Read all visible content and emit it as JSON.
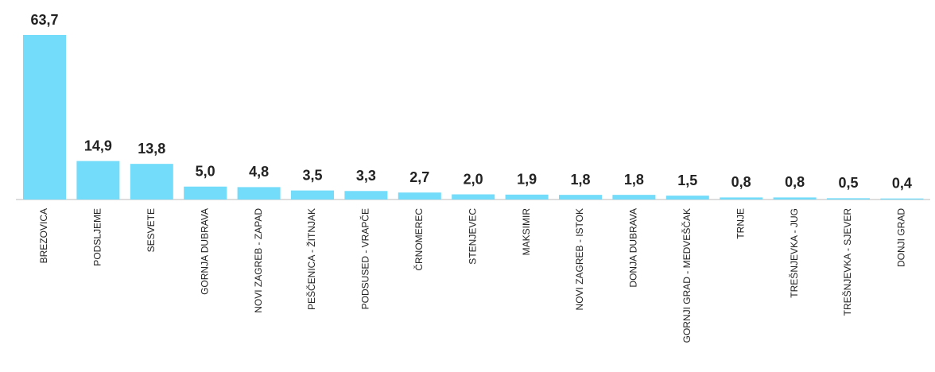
{
  "chart_data": {
    "type": "bar",
    "categories": [
      "BREZOVICA",
      "PODSLJEME",
      "SESVETE",
      "GORNJA DUBRAVA",
      "NOVI ZAGREB - ZAPAD",
      "PEŠČENICA - ŽITNJAK",
      "PODSUSED - VRAPČE",
      "ČRNOMEREC",
      "STENJEVEC",
      "MAKSIMIR",
      "NOVI ZAGREB - ISTOK",
      "DONJA DUBRAVA",
      "GORNJI GRAD - MEDVEŠČAK",
      "TRNJE",
      "TREŠNJEVKA - JUG",
      "TREŠNJEVKA - SJEVER",
      "DONJI GRAD"
    ],
    "values": [
      63.7,
      14.9,
      13.8,
      5.0,
      4.8,
      3.5,
      3.3,
      2.7,
      2.0,
      1.9,
      1.8,
      1.8,
      1.5,
      0.8,
      0.8,
      0.5,
      0.4
    ],
    "value_labels": [
      "63,7",
      "14,9",
      "13,8",
      "5,0",
      "4,8",
      "3,5",
      "3,3",
      "2,7",
      "2,0",
      "1,9",
      "1,8",
      "1,8",
      "1,5",
      "0,8",
      "0,8",
      "0,5",
      "0,4"
    ],
    "color": "#73dcfa"
  }
}
